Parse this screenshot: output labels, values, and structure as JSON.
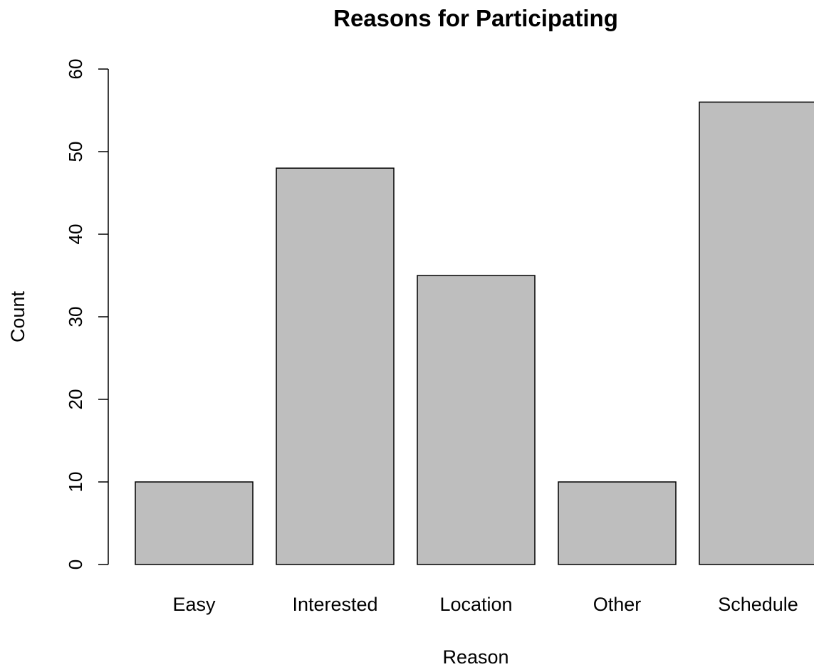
{
  "chart_data": {
    "type": "bar",
    "title": "Reasons for Participating",
    "xlabel": "Reason",
    "ylabel": "Count",
    "categories": [
      "Easy",
      "Interested",
      "Location",
      "Other",
      "Schedule"
    ],
    "values": [
      10,
      48,
      35,
      10,
      56
    ],
    "ylim": [
      0,
      60
    ],
    "yticks": [
      0,
      10,
      20,
      30,
      40,
      50,
      60
    ],
    "grid": false,
    "bar_color": "#bebebe",
    "bar_border_color": "#000000"
  }
}
